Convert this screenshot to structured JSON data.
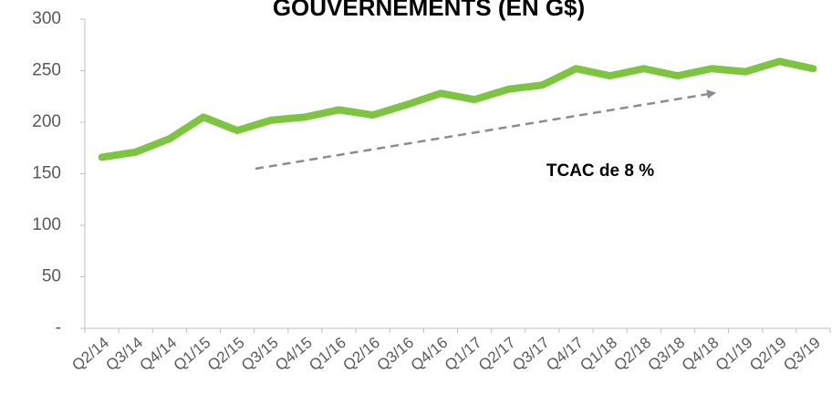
{
  "chart_data": {
    "type": "line",
    "title": "GOUVERNEMENTS (EN G$)",
    "annotation": "TCAC de 8 %",
    "categories": [
      "Q2/14",
      "Q3/14",
      "Q4/14",
      "Q1/15",
      "Q2/15",
      "Q3/15",
      "Q4/15",
      "Q1/16",
      "Q2/16",
      "Q3/16",
      "Q4/16",
      "Q1/17",
      "Q2/17",
      "Q3/17",
      "Q4/17",
      "Q1/18",
      "Q2/18",
      "Q3/18",
      "Q4/18",
      "Q1/19",
      "Q2/19",
      "Q3/19"
    ],
    "values": [
      166,
      171,
      184,
      205,
      192,
      202,
      205,
      212,
      207,
      217,
      228,
      222,
      232,
      236,
      252,
      245,
      252,
      245,
      252,
      249,
      259,
      252
    ],
    "color": "#7dc540",
    "ylim": [
      0,
      300
    ],
    "yticks": [
      {
        "value": 0,
        "label": "-"
      },
      50,
      100,
      150,
      200,
      250,
      300
    ],
    "grid": false
  }
}
